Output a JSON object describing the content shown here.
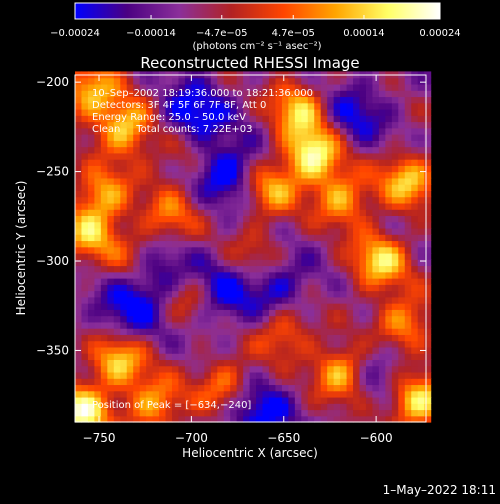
{
  "chart_data": {
    "type": "heatmap",
    "title": "Reconstructed RHESSI Image",
    "xlabel": "Heliocentric X (arcsec)",
    "ylabel": "Heliocentric Y (arcsec)",
    "xlim": [
      -763,
      -573
    ],
    "ylim": [
      -390,
      -196
    ],
    "x_ticks": [
      -750,
      -700,
      -650,
      -600
    ],
    "y_ticks": [
      -200,
      -250,
      -300,
      -350
    ],
    "x_tick_labels": [
      "−750",
      "−700",
      "−650",
      "−600"
    ],
    "y_tick_labels": [
      "−200",
      "−250",
      "−300",
      "−350"
    ],
    "colorbar": {
      "range": [
        -0.00024,
        0.00024
      ],
      "tick_values": [
        -0.00024,
        -0.00014,
        -4.7e-05,
        4.7e-05,
        0.00014,
        0.00024
      ],
      "tick_labels": [
        "−0.00024",
        "−0.00014",
        "−4.7e−05",
        "4.7e−05",
        "0.00014",
        "0.00024"
      ],
      "unit_label": "(photons cm⁻² s⁻¹ asec⁻²)",
      "colors": [
        "#0000ff",
        "#4b0082",
        "#8b2f9a",
        "#b22222",
        "#ff4500",
        "#ffa500",
        "#ffff66",
        "#ffffff"
      ]
    },
    "annotations": [
      "10–Sep–2002 18:19:36.000 to 18:21:36.000",
      "Detectors: 3F 4F 5F 6F 7F 8F, Att 0",
      "Energy Range: 25.0 – 50.0 keV",
      "Clean     Total counts: 7.22E+03"
    ],
    "peak_label": "Position of Peak = [−634,−240]",
    "peak": [
      -634,
      -240
    ],
    "hotspots": [
      {
        "x": -755,
        "y": -205,
        "a": 1.0
      },
      {
        "x": -735,
        "y": -225,
        "a": 1.1
      },
      {
        "x": -748,
        "y": -262,
        "a": 0.9
      },
      {
        "x": -730,
        "y": -300,
        "a": 0.8
      },
      {
        "x": -755,
        "y": -285,
        "a": 0.9
      },
      {
        "x": -712,
        "y": -275,
        "a": 0.7
      },
      {
        "x": -700,
        "y": -320,
        "a": 0.8
      },
      {
        "x": -740,
        "y": -355,
        "a": 1.1
      },
      {
        "x": -760,
        "y": -385,
        "a": 1.3
      },
      {
        "x": -720,
        "y": -380,
        "a": 0.9
      },
      {
        "x": -682,
        "y": -370,
        "a": 0.8
      },
      {
        "x": -650,
        "y": -340,
        "a": 0.7
      },
      {
        "x": -634,
        "y": -240,
        "a": 1.35
      },
      {
        "x": -642,
        "y": -215,
        "a": 1.0
      },
      {
        "x": -658,
        "y": -260,
        "a": 0.9
      },
      {
        "x": -618,
        "y": -265,
        "a": 0.9
      },
      {
        "x": -598,
        "y": -300,
        "a": 1.1
      },
      {
        "x": -583,
        "y": -255,
        "a": 1.0
      },
      {
        "x": -585,
        "y": -335,
        "a": 0.9
      },
      {
        "x": -618,
        "y": -362,
        "a": 1.1
      },
      {
        "x": -578,
        "y": -378,
        "a": 1.2
      },
      {
        "x": -664,
        "y": -298,
        "a": 0.6
      },
      {
        "x": -705,
        "y": -238,
        "a": 0.6
      }
    ],
    "coldspots": [
      {
        "x": -700,
        "y": -220,
        "a": 0.9
      },
      {
        "x": -680,
        "y": -250,
        "a": 0.8
      },
      {
        "x": -722,
        "y": -305,
        "a": 0.9
      },
      {
        "x": -688,
        "y": -318,
        "a": 0.8
      },
      {
        "x": -655,
        "y": -312,
        "a": 0.7
      },
      {
        "x": -665,
        "y": -385,
        "a": 0.8
      },
      {
        "x": -612,
        "y": -218,
        "a": 0.6
      },
      {
        "x": -600,
        "y": -360,
        "a": 0.5
      },
      {
        "x": -735,
        "y": -330,
        "a": 0.6
      }
    ]
  },
  "footer": {
    "timestamp": "1–May–2022 18:11"
  }
}
